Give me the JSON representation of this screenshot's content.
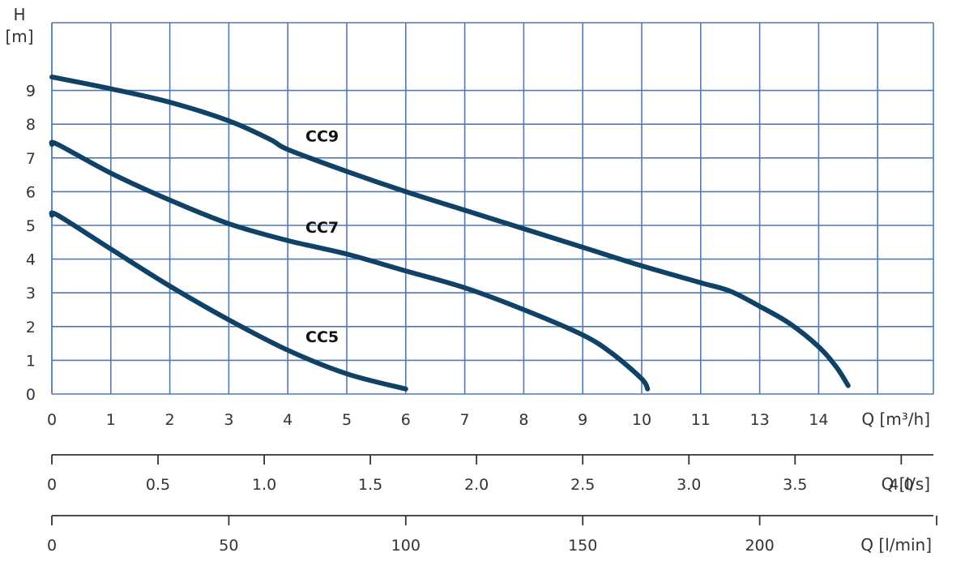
{
  "chart_data": {
    "type": "line",
    "title": "",
    "ylabel_top": "H",
    "ylabel_unit": "[m]",
    "y_ticks": [
      "0",
      "1",
      "2",
      "3",
      "4",
      "5",
      "6",
      "7",
      "8",
      "9"
    ],
    "ylim": [
      0,
      10
    ],
    "x_axes": [
      {
        "label": "Q [m³/h]",
        "ticks": [
          "0",
          "1",
          "2",
          "3",
          "4",
          "5",
          "6",
          "7",
          "8",
          "9",
          "10",
          "11",
          "13",
          "14"
        ],
        "tick_positions": [
          0,
          1,
          2,
          3,
          4,
          5,
          6,
          7,
          8,
          9,
          10,
          11,
          12,
          13
        ]
      },
      {
        "label": "Q [l/s]",
        "ticks": [
          "0",
          "0.5",
          "1.0",
          "1.5",
          "2.0",
          "2.5",
          "3.0",
          "3.5",
          "4.0"
        ],
        "values": [
          0,
          0.5,
          1.0,
          1.5,
          2.0,
          2.5,
          3.0,
          3.5,
          4.0
        ]
      },
      {
        "label": "Q [l/min]",
        "ticks": [
          "0",
          "50",
          "100",
          "150",
          "200"
        ],
        "values": [
          0,
          50,
          100,
          150,
          200
        ]
      }
    ],
    "xlim": [
      0,
      14.8
    ],
    "grid": true,
    "series": [
      {
        "name": "CC9",
        "x": [
          0,
          1,
          2,
          3,
          3.7,
          4,
          5,
          6,
          7,
          8,
          9,
          10,
          11,
          11.5,
          12,
          12.5,
          13,
          13.3,
          13.5
        ],
        "y": [
          9.4,
          9.05,
          8.65,
          8.1,
          7.55,
          7.25,
          6.6,
          6.0,
          5.45,
          4.9,
          4.35,
          3.8,
          3.3,
          3.05,
          2.6,
          2.1,
          1.4,
          0.8,
          0.25
        ]
      },
      {
        "name": "CC7",
        "x": [
          0,
          0.1,
          1,
          2,
          3,
          4,
          5,
          6,
          7,
          8,
          9,
          9.5,
          10,
          10.1
        ],
        "y": [
          7.4,
          7.4,
          6.55,
          5.75,
          5.05,
          4.55,
          4.15,
          3.65,
          3.15,
          2.5,
          1.75,
          1.2,
          0.45,
          0.15
        ]
      },
      {
        "name": "CC5",
        "x": [
          0,
          0.1,
          1,
          2,
          3,
          4,
          5,
          6
        ],
        "y": [
          5.3,
          5.3,
          4.3,
          3.2,
          2.2,
          1.3,
          0.6,
          0.15
        ]
      }
    ]
  },
  "colors": {
    "grid": "#4f7ab7",
    "curve": "#0f4266",
    "axis": "#333333"
  }
}
